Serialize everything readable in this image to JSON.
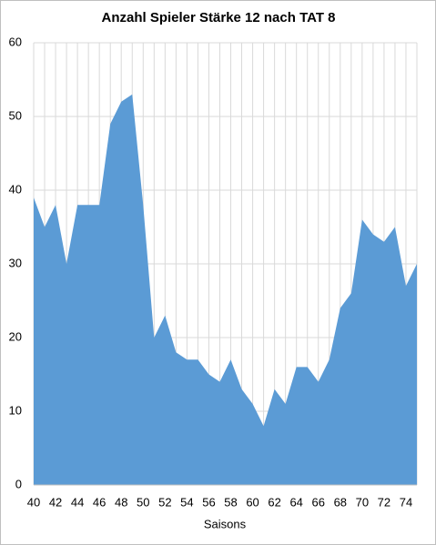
{
  "chart_data": {
    "type": "area",
    "title": "Anzahl Spieler Stärke 12 nach TAT 8",
    "x_label": "Saisons",
    "x": [
      40,
      41,
      42,
      43,
      44,
      45,
      46,
      47,
      48,
      49,
      50,
      51,
      52,
      53,
      54,
      55,
      56,
      57,
      58,
      59,
      60,
      61,
      62,
      63,
      64,
      65,
      66,
      67,
      68,
      69,
      70,
      71,
      72,
      73,
      74,
      75
    ],
    "values": [
      39,
      35,
      38,
      30,
      38,
      38,
      38,
      49,
      52,
      53,
      38,
      20,
      23,
      18,
      17,
      17,
      15,
      14,
      17,
      13,
      11,
      8,
      13,
      11,
      16,
      16,
      14,
      17,
      24,
      26,
      36,
      34,
      33,
      35,
      27,
      30
    ],
    "color": "#5b9bd5",
    "xlim": [
      40,
      75
    ],
    "xticks": [
      40,
      42,
      44,
      46,
      48,
      50,
      52,
      54,
      56,
      58,
      60,
      62,
      64,
      66,
      68,
      70,
      72,
      74
    ],
    "ylim": [
      0,
      60
    ],
    "yticks": [
      0,
      10,
      20,
      30,
      40,
      50,
      60
    ],
    "grid": true
  }
}
